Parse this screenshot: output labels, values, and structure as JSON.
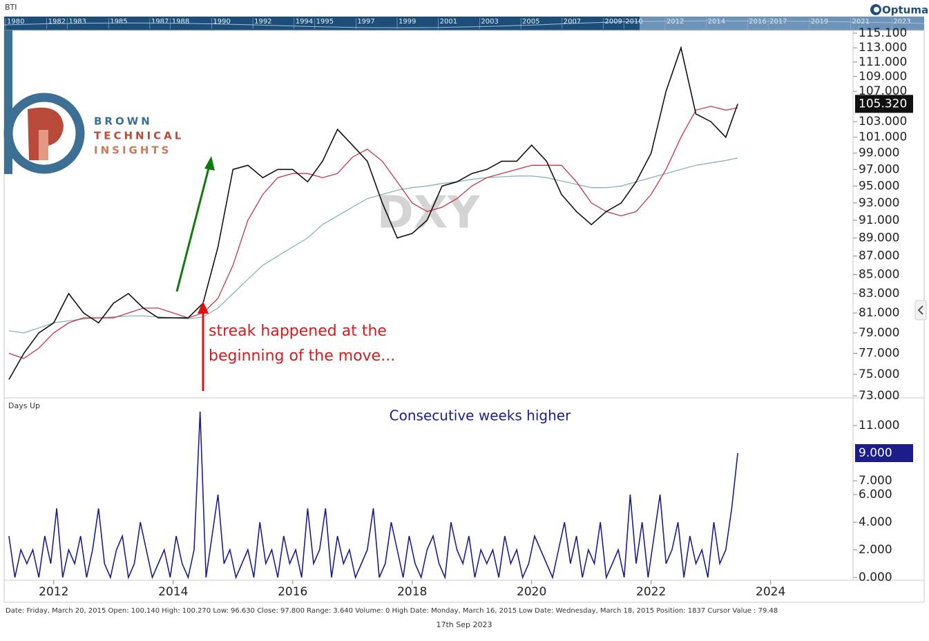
{
  "header": {
    "symbol": "BTI",
    "brand": "Optuma"
  },
  "navigator": {
    "xlim": [
      1980,
      2024.3
    ],
    "years": [
      1980,
      1982,
      1983,
      1985,
      1987,
      1988,
      1990,
      1992,
      1994,
      1995,
      1997,
      1999,
      2001,
      2003,
      2005,
      2007,
      2009,
      2010,
      2012,
      2014,
      2016,
      2017,
      2019,
      2021,
      2023
    ]
  },
  "logo": {
    "line1": "BROWN",
    "line2": "TECHNICAL",
    "line3": "INSIGHTS"
  },
  "chart_data": [
    {
      "type": "line",
      "watermark": "DXY",
      "annotation": [
        "streak happened at the",
        "beginning of the move..."
      ],
      "log_scale": true,
      "xlim": [
        2011.17,
        2025.38
      ],
      "ylim": [
        73,
        115.1
      ],
      "yticks": [
        {
          "value": 73,
          "label": "73.000"
        },
        {
          "value": 75,
          "label": "75.000"
        },
        {
          "value": 77,
          "label": "77.000"
        },
        {
          "value": 79,
          "label": "79.000"
        },
        {
          "value": 81,
          "label": "81.000"
        },
        {
          "value": 83,
          "label": "83.000"
        },
        {
          "value": 85,
          "label": "85.000"
        },
        {
          "value": 87,
          "label": "87.000"
        },
        {
          "value": 89,
          "label": "89.000"
        },
        {
          "value": 91,
          "label": "91.000"
        },
        {
          "value": 93,
          "label": "93.000"
        },
        {
          "value": 95,
          "label": "95.000"
        },
        {
          "value": 97,
          "label": "97.000"
        },
        {
          "value": 99,
          "label": "99.000"
        },
        {
          "value": 101,
          "label": "101.000"
        },
        {
          "value": 103,
          "label": "103.000"
        },
        {
          "value": 107,
          "label": "107.000"
        },
        {
          "value": 109,
          "label": "109.000"
        },
        {
          "value": 111,
          "label": "111.000"
        },
        {
          "value": 113,
          "label": "113.000"
        },
        {
          "value": 115.1,
          "label": "115.100"
        }
      ],
      "x": [
        2011.25,
        2011.5,
        2011.75,
        2012,
        2012.25,
        2012.5,
        2012.75,
        2013,
        2013.25,
        2013.5,
        2013.75,
        2014,
        2014.25,
        2014.5,
        2014.75,
        2015,
        2015.25,
        2015.5,
        2015.75,
        2016,
        2016.25,
        2016.5,
        2016.75,
        2017,
        2017.25,
        2017.5,
        2017.75,
        2018,
        2018.25,
        2018.5,
        2018.75,
        2019,
        2019.25,
        2019.5,
        2019.75,
        2020,
        2020.25,
        2020.5,
        2020.75,
        2021,
        2021.25,
        2021.5,
        2021.75,
        2022,
        2022.25,
        2022.5,
        2022.75,
        2023,
        2023.25,
        2023.45
      ],
      "series": [
        {
          "color": "#111111",
          "last_value_label": "105.320",
          "values": [
            74.5,
            77,
            79,
            80,
            83,
            81,
            80,
            82,
            83,
            81.5,
            80.5,
            80.5,
            80.5,
            82,
            88,
            97,
            97.5,
            96,
            97,
            97,
            95.5,
            98,
            102,
            100,
            98,
            93,
            89,
            89.5,
            91,
            95,
            95.5,
            96.5,
            97,
            98,
            98,
            100,
            98,
            94,
            92,
            90.5,
            92,
            93,
            95.5,
            99,
            107,
            113,
            104,
            103,
            101,
            105.32
          ]
        },
        {
          "color": "#c8344a",
          "values": [
            77,
            76.5,
            77.5,
            79,
            80,
            80.5,
            80.5,
            80.5,
            81,
            81.5,
            81.5,
            81,
            80.5,
            81,
            82.5,
            86,
            91,
            94,
            96,
            96.5,
            96.5,
            96,
            96.5,
            98.5,
            99.5,
            98,
            95.5,
            93,
            92,
            92.5,
            93.5,
            95,
            96,
            96.5,
            97,
            97.5,
            97.5,
            97.5,
            95.5,
            93,
            92,
            91.5,
            92,
            94,
            97,
            101,
            104.5,
            105,
            104.5,
            104.8
          ]
        },
        {
          "color": "#86b4b4",
          "values": [
            79.2,
            79,
            79.5,
            80,
            80.2,
            80.4,
            80.5,
            80.6,
            80.7,
            80.7,
            80.6,
            80.5,
            80.4,
            80.6,
            81.5,
            83,
            84.5,
            86,
            87,
            88,
            89,
            90.5,
            91.5,
            92.5,
            93.5,
            94,
            94.5,
            94.8,
            95,
            95.3,
            95.5,
            95.8,
            96,
            96.1,
            96.2,
            96.2,
            96,
            95.6,
            95.2,
            94.8,
            94.8,
            95,
            95.5,
            96,
            96.5,
            97,
            97.5,
            97.8,
            98.1,
            98.4
          ]
        }
      ]
    },
    {
      "type": "line",
      "panel_label": "Days Up",
      "title": "Consecutive weeks higher",
      "xlim": [
        2011.17,
        2025.38
      ],
      "ylim": [
        0,
        12.95
      ],
      "xticks": [
        2012,
        2014,
        2016,
        2018,
        2020,
        2022,
        2024
      ],
      "yticks": [
        {
          "value": 0,
          "label": "0.000"
        },
        {
          "value": 2,
          "label": "2.000"
        },
        {
          "value": 4,
          "label": "4.000"
        },
        {
          "value": 6,
          "label": "6.000"
        },
        {
          "value": 7,
          "label": "7.000"
        },
        {
          "value": 11,
          "label": "11.000"
        }
      ],
      "x": [
        2011.25,
        2011.35,
        2011.45,
        2011.55,
        2011.65,
        2011.75,
        2011.85,
        2011.95,
        2012.05,
        2012.15,
        2012.25,
        2012.35,
        2012.45,
        2012.55,
        2012.65,
        2012.75,
        2012.85,
        2012.95,
        2013.05,
        2013.15,
        2013.25,
        2013.35,
        2013.45,
        2013.55,
        2013.65,
        2013.75,
        2013.85,
        2013.95,
        2014.05,
        2014.15,
        2014.25,
        2014.35,
        2014.45,
        2014.55,
        2014.65,
        2014.75,
        2014.85,
        2014.95,
        2015.05,
        2015.15,
        2015.25,
        2015.35,
        2015.45,
        2015.55,
        2015.65,
        2015.75,
        2015.85,
        2015.95,
        2016.05,
        2016.15,
        2016.25,
        2016.35,
        2016.45,
        2016.55,
        2016.65,
        2016.75,
        2016.85,
        2016.95,
        2017.05,
        2017.15,
        2017.25,
        2017.35,
        2017.45,
        2017.55,
        2017.65,
        2017.75,
        2017.85,
        2017.95,
        2018.05,
        2018.15,
        2018.25,
        2018.35,
        2018.45,
        2018.55,
        2018.65,
        2018.75,
        2018.85,
        2018.95,
        2019.05,
        2019.15,
        2019.25,
        2019.35,
        2019.45,
        2019.55,
        2019.65,
        2019.75,
        2019.85,
        2019.95,
        2020.05,
        2020.15,
        2020.25,
        2020.35,
        2020.45,
        2020.55,
        2020.65,
        2020.75,
        2020.85,
        2020.95,
        2021.05,
        2021.15,
        2021.25,
        2021.35,
        2021.45,
        2021.55,
        2021.65,
        2021.75,
        2021.85,
        2021.95,
        2022.05,
        2022.15,
        2022.25,
        2022.35,
        2022.45,
        2022.55,
        2022.65,
        2022.75,
        2022.85,
        2022.95,
        2023.05,
        2023.15,
        2023.25,
        2023.35,
        2023.45
      ],
      "series": [
        {
          "color": "#1c1c8a",
          "last_value_label": "9.000",
          "values": [
            3,
            0,
            2,
            1,
            2,
            0,
            3,
            1,
            5,
            0,
            2,
            1,
            3,
            0,
            2,
            5,
            1,
            0,
            2,
            3,
            0,
            1,
            4,
            2,
            0,
            1,
            2,
            0,
            3,
            1,
            0,
            2,
            12,
            0,
            3,
            6,
            1,
            2,
            0,
            1,
            2,
            0,
            4,
            1,
            2,
            0,
            3,
            1,
            2,
            0,
            5,
            1,
            2,
            5,
            0,
            3,
            1,
            2,
            0,
            1,
            2,
            5,
            0,
            1,
            4,
            2,
            0,
            3,
            1,
            0,
            2,
            3,
            1,
            0,
            4,
            2,
            1,
            3,
            0,
            2,
            1,
            2,
            0,
            3,
            1,
            2,
            0,
            1,
            3,
            2,
            1,
            0,
            2,
            4,
            1,
            3,
            0,
            2,
            1,
            4,
            0,
            1,
            2,
            0,
            6,
            1,
            4,
            0,
            3,
            6,
            1,
            2,
            4,
            0,
            3,
            1,
            2,
            0,
            4,
            1,
            2,
            5,
            9
          ]
        }
      ]
    }
  ],
  "status_bar": {
    "info": "Date: Friday, March 20, 2015 Open: 100.140 High: 100.270 Low: 96.630 Close: 97.800 Range: 3.640 Volume: 0 High Date: Monday, March 16, 2015 Low Date: Wednesday, March 18, 2015 Position: 1837 Cursor Value : 79.48",
    "date": "17th Sep 2023"
  }
}
